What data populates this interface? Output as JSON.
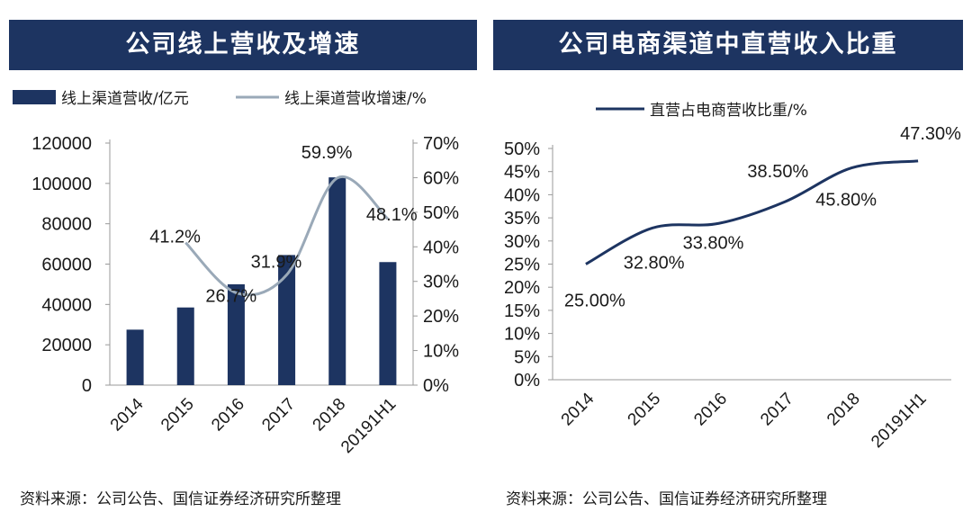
{
  "left_panel": {
    "title": "公司线上营收及增速",
    "source": "资料来源：公司公告、国信证券经济研究所整理"
  },
  "right_panel": {
    "title": "公司电商渠道中直营收入比重",
    "source": "资料来源：公司公告、国信证券经济研究所整理"
  },
  "colors": {
    "navy": "#1d3461",
    "line_gray": "#9aa9b8"
  },
  "chart_data": [
    {
      "type": "bar",
      "categories": [
        "2014",
        "2015",
        "2016",
        "2017",
        "2018",
        "20191H1"
      ],
      "series": [
        {
          "name": "线上渠道营收/亿元",
          "type": "bar",
          "axis": "left",
          "values": [
            27500,
            38500,
            50000,
            64500,
            103000,
            61000
          ]
        },
        {
          "name": "线上渠道营收增速/%",
          "type": "line",
          "axis": "right",
          "values": [
            null,
            41.2,
            26.7,
            31.9,
            59.9,
            48.1
          ],
          "labels": [
            "",
            "41.2%",
            "26.7%",
            "31.9%",
            "59.9%",
            "48.1%"
          ]
        }
      ],
      "y_ticks": [
        "0",
        "20000",
        "40000",
        "60000",
        "80000",
        "100000",
        "120000"
      ],
      "y2_ticks": [
        "0%",
        "10%",
        "20%",
        "30%",
        "40%",
        "50%",
        "60%",
        "70%"
      ],
      "ylim": [
        0,
        120000
      ],
      "y2lim": [
        0,
        70
      ],
      "grid": false,
      "legend": "top"
    },
    {
      "type": "line",
      "categories": [
        "2014",
        "2015",
        "2016",
        "2017",
        "2018",
        "20191H1"
      ],
      "series": [
        {
          "name": "直营占电商营收比重/%",
          "values": [
            25.0,
            32.8,
            33.8,
            38.5,
            45.8,
            47.3
          ],
          "labels": [
            "25.00%",
            "32.80%",
            "33.80%",
            "38.50%",
            "45.80%",
            "47.30%"
          ]
        }
      ],
      "y_ticks": [
        "0%",
        "5%",
        "10%",
        "15%",
        "20%",
        "25%",
        "30%",
        "35%",
        "40%",
        "45%",
        "50%"
      ],
      "ylim": [
        0,
        50
      ],
      "grid": false,
      "legend": "top"
    }
  ]
}
